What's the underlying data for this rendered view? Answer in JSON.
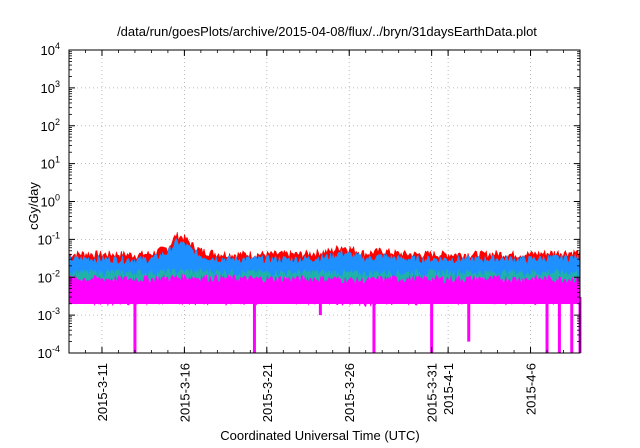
{
  "chart_data": {
    "type": "area",
    "title": "/data/run/goesPlots/archive/2015-04-08/flux/../bryn/31daysEarthData.plot",
    "xlabel": "Coordinated Universal Time (UTC)",
    "ylabel": "cGy/day",
    "yscale": "log",
    "ylim": [
      0.0001,
      10000
    ],
    "xlim": [
      "2015-03-09",
      "2015-04-09"
    ],
    "grid": true,
    "legend": "none",
    "y_ticks": [
      {
        "base": "10",
        "exp": "-4"
      },
      {
        "base": "10",
        "exp": "-3"
      },
      {
        "base": "10",
        "exp": "-2"
      },
      {
        "base": "10",
        "exp": "-1"
      },
      {
        "base": "10",
        "exp": "0"
      },
      {
        "base": "10",
        "exp": "1"
      },
      {
        "base": "10",
        "exp": "2"
      },
      {
        "base": "10",
        "exp": "3"
      },
      {
        "base": "10",
        "exp": "4"
      }
    ],
    "x_ticks": [
      {
        "date": "2015-03-11",
        "label": "2015-3-11"
      },
      {
        "date": "2015-03-16",
        "label": "2015-3-16"
      },
      {
        "date": "2015-03-21",
        "label": "2015-3-21"
      },
      {
        "date": "2015-03-26",
        "label": "2015-3-26"
      },
      {
        "date": "2015-03-31",
        "label": "2015-3-31"
      },
      {
        "date": "2015-04-01",
        "label": "2015-4-1"
      },
      {
        "date": "2015-04-06",
        "label": "2015-4-6"
      }
    ],
    "series_colors": [
      "#ff0000",
      "#1e90ff",
      "#20b2aa",
      "#ff00ff"
    ],
    "series": [
      {
        "color": "#ff0000",
        "points": [
          [
            "2015-03-09",
            0.04
          ],
          [
            "2015-03-10",
            0.042
          ],
          [
            "2015-03-11",
            0.04
          ],
          [
            "2015-03-12",
            0.041
          ],
          [
            "2015-03-13",
            0.039
          ],
          [
            "2015-03-14",
            0.042
          ],
          [
            "2015-03-15",
            0.06
          ],
          [
            "2015-03-15T12",
            0.13
          ],
          [
            "2015-03-16",
            0.11
          ],
          [
            "2015-03-16T12",
            0.07
          ],
          [
            "2015-03-17",
            0.05
          ],
          [
            "2015-03-18",
            0.042
          ],
          [
            "2015-03-19",
            0.04
          ],
          [
            "2015-03-20",
            0.041
          ],
          [
            "2015-03-21",
            0.04
          ],
          [
            "2015-03-22",
            0.041
          ],
          [
            "2015-03-23",
            0.04
          ],
          [
            "2015-03-24",
            0.044
          ],
          [
            "2015-03-25",
            0.05
          ],
          [
            "2015-03-25T12",
            0.065
          ],
          [
            "2015-03-26",
            0.058
          ],
          [
            "2015-03-27",
            0.042
          ],
          [
            "2015-03-28",
            0.05
          ],
          [
            "2015-03-29",
            0.042
          ],
          [
            "2015-03-30",
            0.04
          ],
          [
            "2015-03-31",
            0.041
          ],
          [
            "2015-04-01",
            0.04
          ],
          [
            "2015-04-02",
            0.041
          ],
          [
            "2015-04-03",
            0.04
          ],
          [
            "2015-04-04",
            0.042
          ],
          [
            "2015-04-05",
            0.04
          ],
          [
            "2015-04-06",
            0.041
          ],
          [
            "2015-04-07",
            0.043
          ],
          [
            "2015-04-08",
            0.045
          ],
          [
            "2015-04-09",
            0.045
          ]
        ]
      },
      {
        "color": "#1e90ff",
        "points": [
          [
            "2015-03-09",
            0.03
          ],
          [
            "2015-03-10",
            0.031
          ],
          [
            "2015-03-11",
            0.03
          ],
          [
            "2015-03-12",
            0.03
          ],
          [
            "2015-03-13",
            0.029
          ],
          [
            "2015-03-14",
            0.03
          ],
          [
            "2015-03-15",
            0.045
          ],
          [
            "2015-03-15T12",
            0.085
          ],
          [
            "2015-03-16",
            0.075
          ],
          [
            "2015-03-16T12",
            0.05
          ],
          [
            "2015-03-17",
            0.036
          ],
          [
            "2015-03-18",
            0.031
          ],
          [
            "2015-03-19",
            0.03
          ],
          [
            "2015-03-20",
            0.03
          ],
          [
            "2015-03-21",
            0.03
          ],
          [
            "2015-03-22",
            0.03
          ],
          [
            "2015-03-23",
            0.03
          ],
          [
            "2015-03-24",
            0.032
          ],
          [
            "2015-03-25",
            0.036
          ],
          [
            "2015-03-25T12",
            0.045
          ],
          [
            "2015-03-26",
            0.04
          ],
          [
            "2015-03-27",
            0.031
          ],
          [
            "2015-03-28",
            0.036
          ],
          [
            "2015-03-29",
            0.031
          ],
          [
            "2015-03-30",
            0.03
          ],
          [
            "2015-03-31",
            0.03
          ],
          [
            "2015-04-01",
            0.03
          ],
          [
            "2015-04-02",
            0.03
          ],
          [
            "2015-04-03",
            0.03
          ],
          [
            "2015-04-04",
            0.031
          ],
          [
            "2015-04-05",
            0.03
          ],
          [
            "2015-04-06",
            0.03
          ],
          [
            "2015-04-07",
            0.032
          ],
          [
            "2015-04-08",
            0.033
          ],
          [
            "2015-04-09",
            0.033
          ]
        ]
      },
      {
        "color": "#20b2aa",
        "points": [
          [
            "2015-03-09",
            0.013
          ],
          [
            "2015-03-11",
            0.013
          ],
          [
            "2015-03-14",
            0.013
          ],
          [
            "2015-03-16",
            0.014
          ],
          [
            "2015-03-20",
            0.013
          ],
          [
            "2015-03-25",
            0.013
          ],
          [
            "2015-03-27",
            0.012
          ],
          [
            "2015-03-28",
            0.013
          ],
          [
            "2015-04-02",
            0.013
          ],
          [
            "2015-04-06",
            0.013
          ],
          [
            "2015-04-09",
            0.013
          ]
        ]
      },
      {
        "color": "#ff00ff",
        "points": [
          [
            "2015-03-09",
            0.009
          ],
          [
            "2015-03-11",
            0.009
          ],
          [
            "2015-03-14",
            0.009
          ],
          [
            "2015-03-16",
            0.01
          ],
          [
            "2015-03-20",
            0.009
          ],
          [
            "2015-03-25",
            0.009
          ],
          [
            "2015-03-27",
            0.008
          ],
          [
            "2015-03-28",
            0.009
          ],
          [
            "2015-04-02",
            0.009
          ],
          [
            "2015-04-06",
            0.009
          ],
          [
            "2015-04-09",
            0.009
          ]
        ]
      },
      {
        "color": "#ff00ff",
        "points": [
          [
            "2015-03-09",
            0.0025
          ],
          [
            "2015-03-11",
            0.0024
          ],
          [
            "2015-03-14",
            0.0025
          ],
          [
            "2015-03-16",
            0.0025
          ],
          [
            "2015-03-20",
            0.0024
          ],
          [
            "2015-03-25",
            0.0025
          ],
          [
            "2015-03-27",
            0.0022
          ],
          [
            "2015-03-28",
            0.0024
          ],
          [
            "2015-04-02",
            0.0025
          ],
          [
            "2015-04-06",
            0.0024
          ],
          [
            "2015-04-09",
            0.0025
          ]
        ]
      }
    ],
    "dips": [
      {
        "date": "2015-03-13",
        "to": 0.0001,
        "color": "#ff00ff"
      },
      {
        "date": "2015-03-20T06",
        "to": 0.0001,
        "color": "#ff00ff"
      },
      {
        "date": "2015-03-24T06",
        "to": 0.001,
        "color": "#ff00ff"
      },
      {
        "date": "2015-03-27T12",
        "to": 0.0001,
        "color": "#ff00ff"
      },
      {
        "date": "2015-03-31",
        "to": 0.0001,
        "color": "#ff00ff"
      },
      {
        "date": "2015-04-02T06",
        "to": 0.0002,
        "color": "#ff00ff"
      },
      {
        "date": "2015-04-07",
        "to": 0.0001,
        "color": "#ff00ff"
      },
      {
        "date": "2015-04-07T18",
        "to": 0.0001,
        "color": "#ff00ff"
      },
      {
        "date": "2015-04-08T12",
        "to": 0.0001,
        "color": "#ff00ff"
      },
      {
        "date": "2015-04-09",
        "to": 0.0001,
        "color": "#ff00ff"
      }
    ]
  }
}
